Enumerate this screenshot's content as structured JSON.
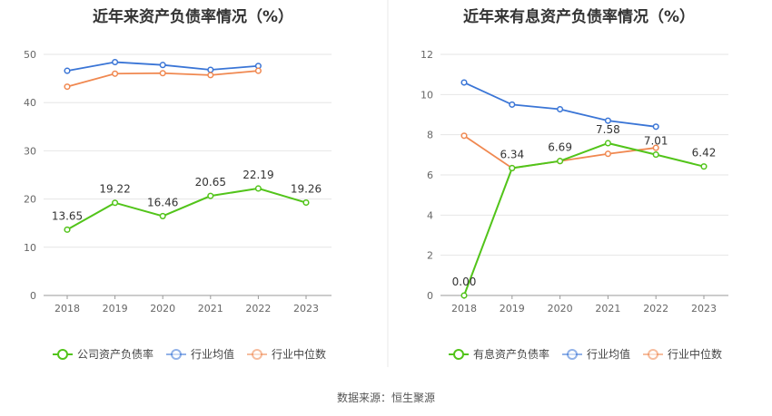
{
  "chart_data": [
    {
      "type": "line",
      "title": "近年来资产负债率情况（%）",
      "categories": [
        "2018",
        "2019",
        "2020",
        "2021",
        "2022",
        "2023"
      ],
      "ylim": [
        0,
        50
      ],
      "yticks": [
        0,
        10,
        20,
        30,
        40,
        50
      ],
      "legend": "bottom",
      "series": [
        {
          "name": "公司资产负债率",
          "color": "#52c41a",
          "values": [
            13.65,
            19.22,
            16.46,
            20.65,
            22.19,
            19.26
          ],
          "labels": [
            "13.65",
            "19.22",
            "16.46",
            "20.65",
            "22.19",
            "19.26"
          ]
        },
        {
          "name": "行业均值",
          "color": "#3a75d6",
          "values": [
            46.6,
            48.4,
            47.8,
            46.8,
            47.6,
            null
          ]
        },
        {
          "name": "行业中位数",
          "color": "#f08850",
          "values": [
            43.3,
            46.0,
            46.1,
            45.7,
            46.6,
            null
          ]
        }
      ]
    },
    {
      "type": "line",
      "title": "近年来有息资产负债率情况（%）",
      "categories": [
        "2018",
        "2019",
        "2020",
        "2021",
        "2022",
        "2023"
      ],
      "ylim": [
        0,
        12
      ],
      "yticks": [
        0,
        2,
        4,
        6,
        8,
        10,
        12
      ],
      "legend": "bottom",
      "series": [
        {
          "name": "有息资产负债率",
          "color": "#52c41a",
          "values": [
            0.0,
            6.34,
            6.69,
            7.58,
            7.01,
            6.42
          ],
          "labels": [
            "0.00",
            "6.34",
            "6.69",
            "7.58",
            "7.01",
            "6.42"
          ]
        },
        {
          "name": "行业均值",
          "color": "#3a75d6",
          "values": [
            10.6,
            9.5,
            9.27,
            8.7,
            8.4,
            null
          ]
        },
        {
          "name": "行业中位数",
          "color": "#f08850",
          "values": [
            7.95,
            6.34,
            6.69,
            7.05,
            7.35,
            null
          ]
        }
      ]
    }
  ],
  "source_text": "数据来源：恒生聚源"
}
